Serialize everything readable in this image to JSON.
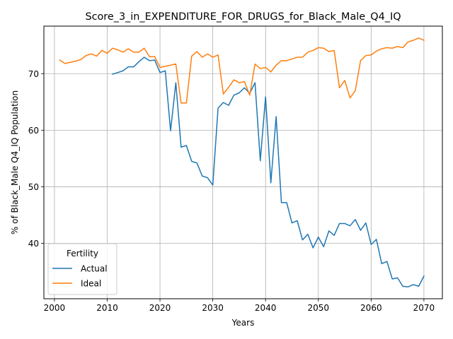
{
  "chart_data": {
    "type": "line",
    "title": "Score_3_in_EXPENDITURE_FOR_DRUGS_for_Black_Male_Q4_IQ",
    "xlabel": "Years",
    "ylabel": "% of Black_Male Q4_IQ Population",
    "xlim": [
      1998,
      2073.5
    ],
    "ylim": [
      30.2,
      78.4
    ],
    "xticks": [
      2000,
      2010,
      2020,
      2030,
      2040,
      2050,
      2060,
      2070
    ],
    "yticks": [
      40,
      50,
      60,
      70
    ],
    "grid": true,
    "legend": {
      "title": "Fertility",
      "placement": "bottom-left"
    },
    "series": [
      {
        "name": "Actual",
        "color": "#1f77b4",
        "x": [
          2011,
          2012,
          2013,
          2014,
          2015,
          2016,
          2017,
          2018,
          2019,
          2020,
          2021,
          2022,
          2023,
          2024,
          2025,
          2026,
          2027,
          2028,
          2029,
          2030,
          2031,
          2032,
          2033,
          2034,
          2035,
          2036,
          2037,
          2038,
          2039,
          2040,
          2041,
          2042,
          2043,
          2044,
          2045,
          2046,
          2047,
          2048,
          2049,
          2050,
          2051,
          2052,
          2053,
          2054,
          2055,
          2056,
          2057,
          2058,
          2059,
          2060,
          2061,
          2062,
          2063,
          2064,
          2065,
          2066,
          2067,
          2068,
          2069,
          2070
        ],
        "y": [
          69.9,
          70.2,
          70.5,
          71.2,
          71.2,
          72.1,
          72.9,
          72.3,
          72.4,
          70.2,
          70.5,
          59.9,
          68.4,
          57.0,
          57.3,
          54.5,
          54.2,
          51.9,
          51.6,
          50.3,
          63.9,
          64.9,
          64.4,
          66.2,
          66.6,
          67.5,
          66.5,
          68.4,
          54.6,
          65.9,
          50.7,
          62.4,
          47.2,
          47.2,
          43.6,
          44.0,
          40.6,
          41.6,
          39.2,
          41.1,
          39.4,
          42.2,
          41.4,
          43.5,
          43.5,
          43.1,
          44.2,
          42.3,
          43.6,
          39.8,
          40.7,
          36.4,
          36.8,
          33.7,
          33.9,
          32.4,
          32.3,
          32.7,
          32.4,
          34.2
        ]
      },
      {
        "name": "Ideal",
        "color": "#ff7f0e",
        "x": [
          2001,
          2002,
          2003,
          2004,
          2005,
          2006,
          2007,
          2008,
          2009,
          2010,
          2011,
          2012,
          2013,
          2014,
          2015,
          2016,
          2017,
          2018,
          2019,
          2020,
          2021,
          2022,
          2023,
          2024,
          2025,
          2026,
          2027,
          2028,
          2029,
          2030,
          2031,
          2032,
          2033,
          2034,
          2035,
          2036,
          2037,
          2038,
          2039,
          2040,
          2041,
          2042,
          2043,
          2044,
          2045,
          2046,
          2047,
          2048,
          2049,
          2050,
          2051,
          2052,
          2053,
          2054,
          2055,
          2056,
          2057,
          2058,
          2059,
          2060,
          2061,
          2062,
          2063,
          2064,
          2065,
          2066,
          2067,
          2068,
          2069,
          2070
        ],
        "y": [
          72.4,
          71.8,
          72.0,
          72.2,
          72.5,
          73.2,
          73.5,
          73.1,
          74.1,
          73.6,
          74.5,
          74.2,
          73.8,
          74.4,
          73.8,
          73.8,
          74.5,
          73.0,
          73.0,
          71.1,
          71.3,
          71.5,
          71.7,
          64.8,
          64.8,
          73.1,
          73.9,
          72.9,
          73.5,
          72.9,
          73.3,
          66.4,
          67.6,
          68.9,
          68.4,
          68.6,
          66.2,
          71.7,
          70.9,
          71.1,
          70.3,
          71.5,
          72.3,
          72.3,
          72.6,
          72.9,
          72.9,
          73.8,
          74.1,
          74.6,
          74.5,
          73.9,
          74.1,
          67.5,
          68.8,
          65.7,
          67.0,
          72.3,
          73.2,
          73.3,
          74.0,
          74.4,
          74.6,
          74.5,
          74.8,
          74.6,
          75.6,
          75.9,
          76.3,
          75.9
        ]
      }
    ]
  }
}
